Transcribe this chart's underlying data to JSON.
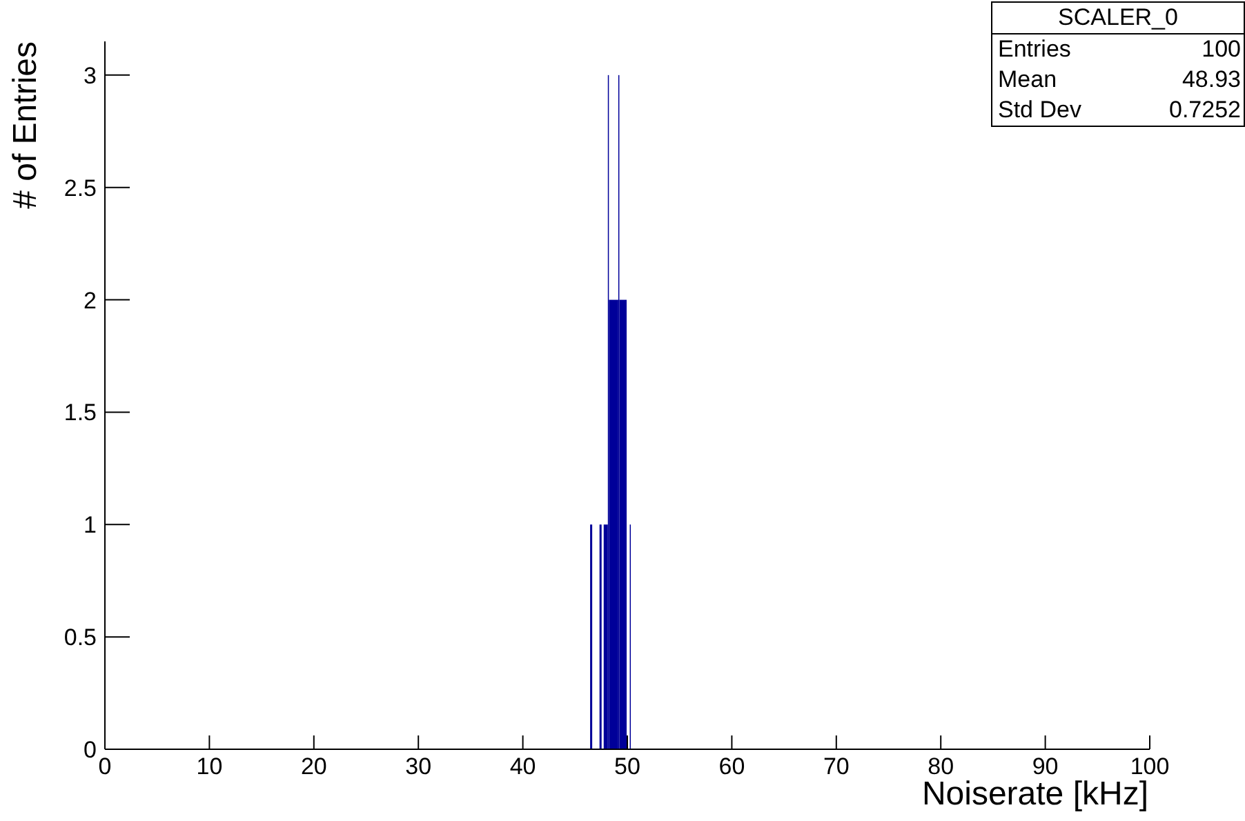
{
  "chart_data": {
    "type": "histogram",
    "xlabel": "Noiserate [kHz]",
    "ylabel": "# of Entries",
    "bins": [
      46.5,
      46.7,
      47.4,
      47.6,
      47.8,
      48.2,
      48.3,
      49.2,
      49.3,
      50.0,
      50.3,
      50.4
    ],
    "values": [
      1,
      0,
      1,
      0,
      1,
      3,
      2,
      3,
      2,
      0,
      1
    ],
    "color": "#000099",
    "xlim": [
      0,
      100
    ],
    "xticks": [
      0,
      10,
      20,
      30,
      40,
      50,
      60,
      70,
      80,
      90,
      100
    ],
    "ylim": [
      0,
      3.15
    ],
    "yticks": [
      0,
      0.5,
      1,
      1.5,
      2,
      2.5,
      3
    ],
    "grid": false,
    "annotations": [
      "SCALER_0",
      "Entries",
      "100",
      "Mean",
      "48.93",
      "Std Dev",
      "0.7252"
    ]
  }
}
